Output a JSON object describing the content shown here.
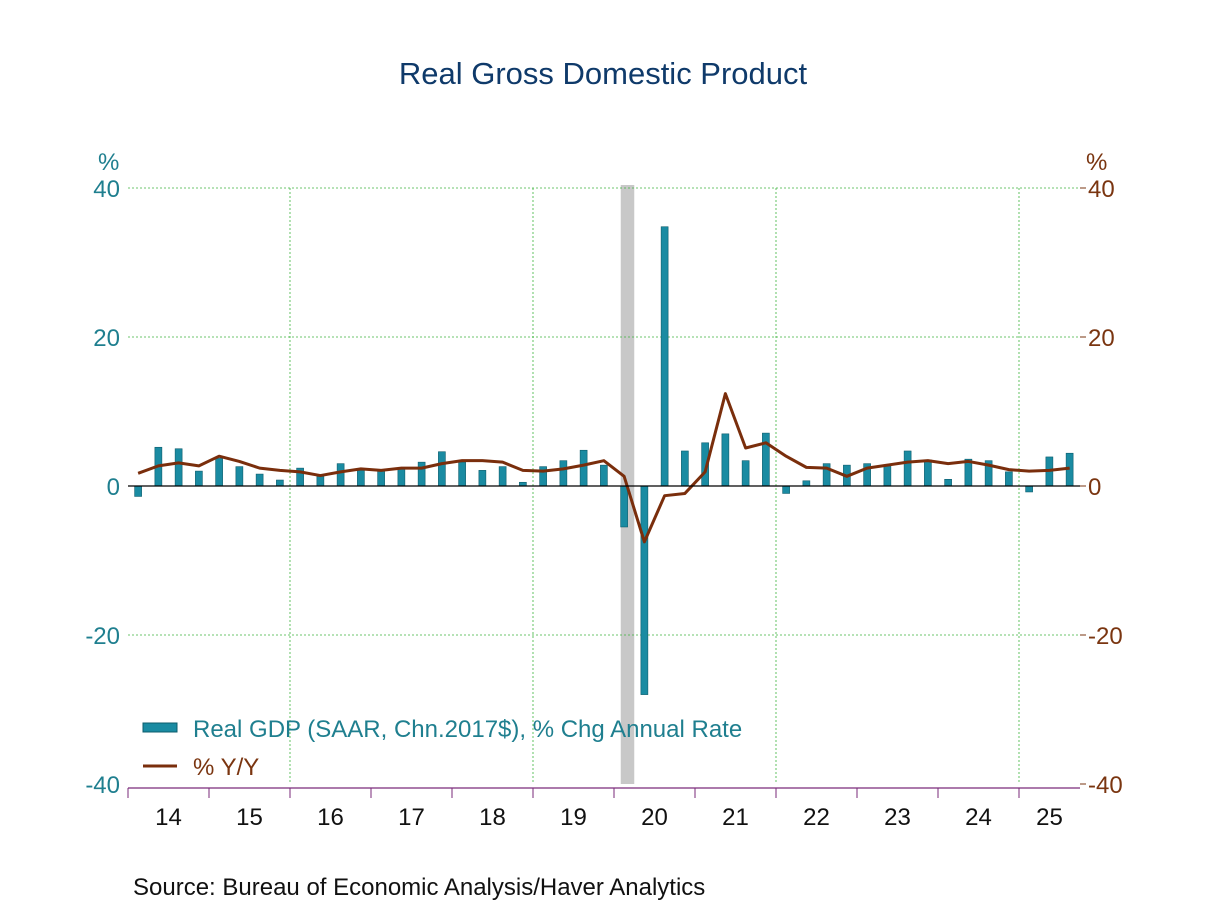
{
  "chart_data": {
    "type": "bar+line",
    "title": "Real Gross Domestic Product",
    "source": "Source:  Bureau of Economic Analysis/Haver Analytics",
    "left_axis": {
      "unit": "%",
      "ylim": [
        -40,
        40
      ],
      "ticks": [
        "40",
        "20",
        "0",
        "-20",
        "-40"
      ],
      "color": "#1f7f8f"
    },
    "right_axis": {
      "unit": "%",
      "ylim": [
        -40,
        40
      ],
      "ticks": [
        "40",
        "20",
        "0",
        "-20",
        "-40"
      ],
      "color": "#7a3510"
    },
    "x_tick_labels": [
      "14",
      "15",
      "16",
      "17",
      "18",
      "19",
      "20",
      "21",
      "22",
      "23",
      "24",
      "25"
    ],
    "x_start_year": 2014,
    "grid": true,
    "legend_placement": "bottom-left",
    "recession": {
      "start": "2020-02",
      "end": "2020-04",
      "color": "#c8c8c8"
    },
    "quarters": [
      "2014Q1",
      "2014Q2",
      "2014Q3",
      "2014Q4",
      "2015Q1",
      "2015Q2",
      "2015Q3",
      "2015Q4",
      "2016Q1",
      "2016Q2",
      "2016Q3",
      "2016Q4",
      "2017Q1",
      "2017Q2",
      "2017Q3",
      "2017Q4",
      "2018Q1",
      "2018Q2",
      "2018Q3",
      "2018Q4",
      "2019Q1",
      "2019Q2",
      "2019Q3",
      "2019Q4",
      "2020Q1",
      "2020Q2",
      "2020Q3",
      "2020Q4",
      "2021Q1",
      "2021Q2",
      "2021Q3",
      "2021Q4",
      "2022Q1",
      "2022Q2",
      "2022Q3",
      "2022Q4",
      "2023Q1",
      "2023Q2",
      "2023Q3",
      "2023Q4",
      "2024Q1",
      "2024Q2",
      "2024Q3",
      "2024Q4",
      "2025Q1",
      "2025Q2",
      "2025Q3"
    ],
    "series": [
      {
        "name": "Real GDP (SAAR, Chn.2017$), % Chg Annual Rate",
        "type": "bar",
        "axis": "left",
        "color": "#1a8ba2",
        "values": [
          -1.4,
          5.2,
          5.0,
          2.0,
          3.7,
          2.6,
          1.6,
          0.8,
          2.4,
          1.3,
          3.0,
          2.1,
          2.0,
          2.4,
          3.2,
          4.6,
          3.2,
          2.1,
          2.6,
          0.5,
          2.6,
          3.4,
          4.8,
          2.8,
          -5.5,
          -28.0,
          34.8,
          4.7,
          5.8,
          7.0,
          3.4,
          7.1,
          -1.0,
          0.7,
          3.0,
          2.8,
          3.0,
          2.7,
          4.7,
          3.5,
          0.9,
          3.6,
          3.4,
          1.9,
          -0.8,
          3.9,
          4.4
        ]
      },
      {
        "name": "% Y/Y",
        "type": "line",
        "axis": "right",
        "color": "#7a2e0c",
        "values": [
          1.7,
          2.7,
          3.1,
          2.7,
          4.0,
          3.3,
          2.4,
          2.1,
          1.9,
          1.4,
          1.9,
          2.3,
          2.1,
          2.4,
          2.4,
          3.0,
          3.4,
          3.4,
          3.2,
          2.1,
          2.0,
          2.3,
          2.8,
          3.4,
          1.3,
          -7.5,
          -1.3,
          -1.0,
          1.9,
          12.4,
          5.1,
          5.8,
          4.0,
          2.5,
          2.4,
          1.3,
          2.4,
          2.8,
          3.2,
          3.4,
          3.0,
          3.3,
          2.8,
          2.2,
          2.0,
          2.1,
          2.4
        ]
      }
    ]
  }
}
